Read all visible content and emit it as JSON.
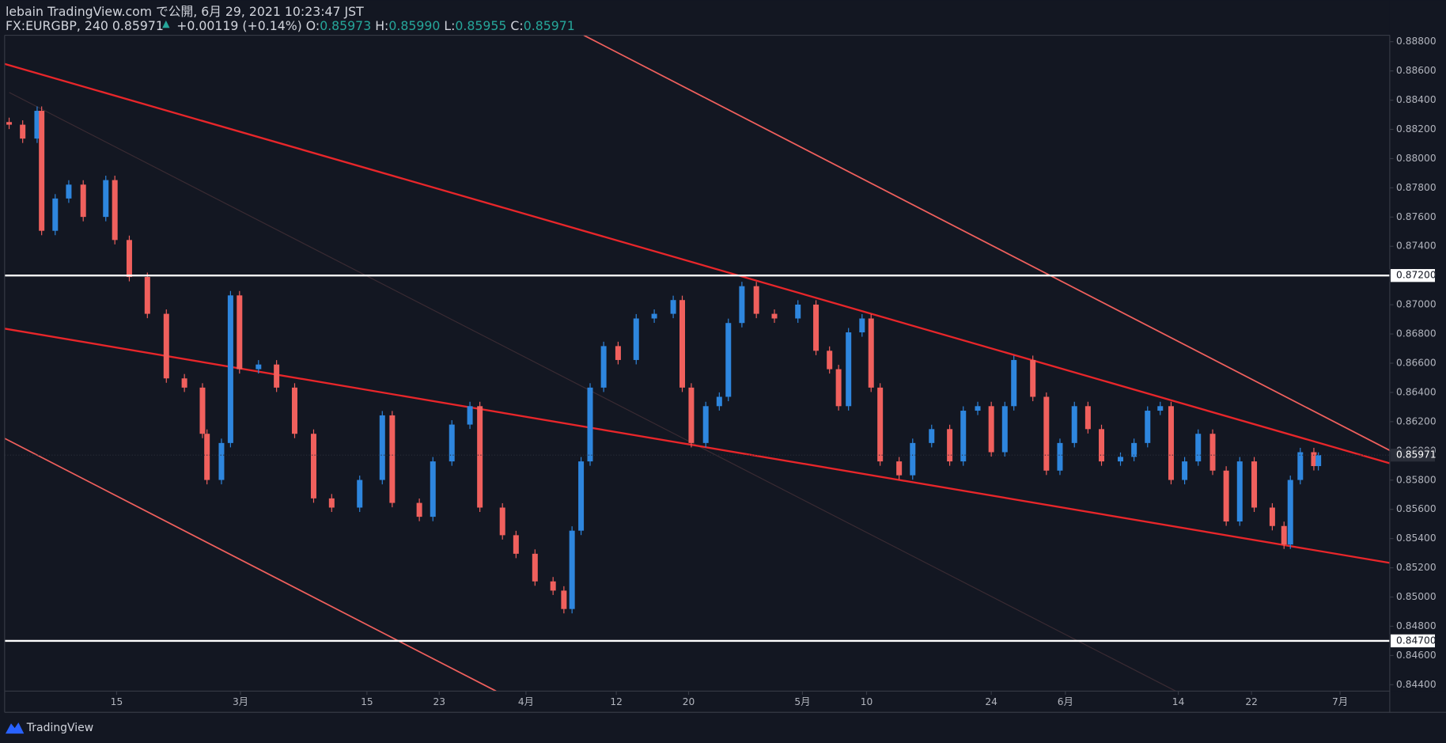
{
  "header": {
    "publisher_line": "lebain TradingView.com で公開, 6月 29, 2021 10:23:47 JST",
    "symbol": "FX:EURGBP, 240",
    "last": "0.85971",
    "change": "+0.00119 (+0.14%)",
    "open_label": "O:",
    "open": "0.85973",
    "high_label": "H:",
    "high": "0.85990",
    "low_label": "L:",
    "low": "0.85955",
    "close_label": "C:",
    "close": "0.85971"
  },
  "footer": {
    "brand": "TradingView"
  },
  "chart_data": {
    "type": "candlestick",
    "up_color": "#2e86de",
    "down_color": "#f0605d",
    "grid": false,
    "x": [
      0.5,
      2.0,
      3.6,
      4.1,
      5.6,
      7.1,
      8.7,
      11.2,
      12.2,
      13.8,
      15.8,
      17.9,
      19.9,
      21.9,
      22.4,
      24.0,
      25.0,
      26.0,
      28.1,
      30.1,
      32.1,
      34.2,
      36.2,
      39.3,
      41.8,
      42.9,
      45.9,
      47.4,
      49.5,
      51.5,
      52.6,
      55.1,
      56.6,
      58.7,
      60.7,
      61.9,
      62.8,
      63.8,
      64.8,
      66.3,
      67.9,
      69.9,
      71.9,
      74.0,
      75.0,
      76.0,
      77.6,
      79.1,
      80.1,
      81.6,
      83.2,
      85.2,
      87.8,
      89.8,
      91.3,
      92.3,
      93.4,
      94.9,
      95.9,
      96.9,
      99.0,
      100.5,
      102.6,
      104.6,
      106.1,
      107.7,
      109.2,
      110.7,
      111.7,
      113.8,
      115.3,
      116.8,
      118.4,
      119.9,
      121.4,
      123.5,
      125.0,
      126.5,
      127.9,
      129.1,
      130.6,
      132.1,
      133.7,
      135.2,
      136.7,
      138.3,
      140.3,
      141.6,
      142.3,
      143.4,
      144.9,
      145.4
    ],
    "open": [
      0.8825,
      0.88232,
      0.88137,
      0.88327,
      0.87506,
      0.87727,
      0.87822,
      0.87601,
      0.87853,
      0.87443,
      0.8719,
      0.86938,
      0.86496,
      0.86433,
      0.86117,
      0.85801,
      0.86054,
      0.87064,
      0.86559,
      0.86591,
      0.86433,
      0.86117,
      0.85675,
      0.85612,
      0.85801,
      0.86243,
      0.85644,
      0.85549,
      0.85928,
      0.8618,
      0.86306,
      0.85612,
      0.85423,
      0.85296,
      0.85107,
      0.85044,
      0.84918,
      0.85454,
      0.85928,
      0.86433,
      0.86717,
      0.86622,
      0.86906,
      0.86938,
      0.87032,
      0.86433,
      0.86054,
      0.86306,
      0.8637,
      0.86875,
      0.87127,
      0.86938,
      0.86906,
      0.87001,
      0.86685,
      0.86559,
      0.86306,
      0.86811,
      0.86906,
      0.86433,
      0.85928,
      0.85833,
      0.86054,
      0.86149,
      0.85928,
      0.86275,
      0.86306,
      0.85991,
      0.86306,
      0.86622,
      0.8637,
      0.85865,
      0.86054,
      0.86306,
      0.86149,
      0.85928,
      0.85959,
      0.86054,
      0.86275,
      0.86306,
      0.85801,
      0.85928,
      0.86117,
      0.85865,
      0.85517,
      0.85928,
      0.85612,
      0.85486,
      0.85359,
      0.85801,
      0.85991,
      0.85896
    ],
    "high": [
      0.8828,
      0.88262,
      0.88357,
      0.88357,
      0.87757,
      0.87852,
      0.87852,
      0.87883,
      0.87883,
      0.87473,
      0.8722,
      0.86968,
      0.86526,
      0.86463,
      0.86147,
      0.86084,
      0.87094,
      0.87094,
      0.86621,
      0.86621,
      0.86463,
      0.86147,
      0.85705,
      0.85831,
      0.86273,
      0.86273,
      0.85674,
      0.85958,
      0.8621,
      0.86336,
      0.86336,
      0.85642,
      0.85453,
      0.85326,
      0.85137,
      0.85074,
      0.85484,
      0.85958,
      0.86463,
      0.86747,
      0.86747,
      0.86936,
      0.86968,
      0.87062,
      0.87062,
      0.86463,
      0.86336,
      0.864,
      0.86905,
      0.87157,
      0.87157,
      0.86968,
      0.87031,
      0.87031,
      0.86715,
      0.86589,
      0.86841,
      0.86936,
      0.86936,
      0.86463,
      0.85958,
      0.86084,
      0.86179,
      0.86179,
      0.86305,
      0.86336,
      0.86336,
      0.86336,
      0.86652,
      0.86652,
      0.864,
      0.86084,
      0.86336,
      0.86336,
      0.86179,
      0.85989,
      0.86084,
      0.86305,
      0.86336,
      0.86336,
      0.85958,
      0.86147,
      0.86147,
      0.85895,
      0.85958,
      0.85958,
      0.85642,
      0.85516,
      0.85831,
      0.86021,
      0.86021,
      0.8599
    ],
    "low": [
      0.88202,
      0.88107,
      0.88107,
      0.87476,
      0.87476,
      0.87697,
      0.87571,
      0.87571,
      0.87413,
      0.8716,
      0.86908,
      0.86466,
      0.86403,
      0.86087,
      0.85771,
      0.85771,
      0.86024,
      0.86529,
      0.86529,
      0.86403,
      0.86087,
      0.85645,
      0.85582,
      0.85582,
      0.85771,
      0.85614,
      0.85519,
      0.85519,
      0.85898,
      0.8615,
      0.85582,
      0.85393,
      0.85266,
      0.85077,
      0.85014,
      0.84888,
      0.84888,
      0.85424,
      0.85898,
      0.86403,
      0.86592,
      0.86592,
      0.86876,
      0.86908,
      0.86403,
      0.86024,
      0.86024,
      0.86276,
      0.8634,
      0.86845,
      0.86908,
      0.86876,
      0.86876,
      0.86655,
      0.86529,
      0.86276,
      0.86276,
      0.86781,
      0.86403,
      0.85898,
      0.85803,
      0.85803,
      0.86024,
      0.85898,
      0.85898,
      0.86245,
      0.85961,
      0.85961,
      0.86276,
      0.8634,
      0.85835,
      0.85835,
      0.86024,
      0.86119,
      0.85898,
      0.85898,
      0.85929,
      0.86024,
      0.86245,
      0.85771,
      0.85771,
      0.85898,
      0.85835,
      0.85487,
      0.85487,
      0.85582,
      0.85456,
      0.85329,
      0.85329,
      0.85771,
      0.85866,
      0.85866
    ],
    "close": [
      0.88232,
      0.88137,
      0.88327,
      0.87506,
      0.87727,
      0.87822,
      0.87601,
      0.87853,
      0.87443,
      0.8719,
      0.86938,
      0.86496,
      0.86433,
      0.86117,
      0.85801,
      0.86054,
      0.87064,
      0.86559,
      0.86591,
      0.86433,
      0.86117,
      0.85675,
      0.85612,
      0.85801,
      0.86243,
      0.85644,
      0.85549,
      0.85928,
      0.8618,
      0.86306,
      0.85612,
      0.85423,
      0.85296,
      0.85107,
      0.85044,
      0.84918,
      0.85454,
      0.85928,
      0.86433,
      0.86717,
      0.86622,
      0.86906,
      0.86938,
      0.87032,
      0.86433,
      0.86054,
      0.86306,
      0.8637,
      0.86875,
      0.87127,
      0.86938,
      0.86906,
      0.87001,
      0.86685,
      0.86559,
      0.86306,
      0.86811,
      0.86906,
      0.86433,
      0.85928,
      0.85833,
      0.86054,
      0.86149,
      0.85928,
      0.86275,
      0.86306,
      0.85991,
      0.86306,
      0.86622,
      0.8637,
      0.85865,
      0.86054,
      0.86306,
      0.86149,
      0.85928,
      0.85959,
      0.86054,
      0.86275,
      0.86306,
      0.85801,
      0.85928,
      0.86117,
      0.85865,
      0.85517,
      0.85928,
      0.85612,
      0.85486,
      0.85359,
      0.85801,
      0.85991,
      0.85896,
      0.85971
    ],
    "xlim": [
      0,
      153.3
    ],
    "xticks": [
      {
        "value": 12.4,
        "label": "15"
      },
      {
        "value": 26.1,
        "label": "3月"
      },
      {
        "value": 40.1,
        "label": "15"
      },
      {
        "value": 48.1,
        "label": "23"
      },
      {
        "value": 57.7,
        "label": "4月"
      },
      {
        "value": 67.7,
        "label": "12"
      },
      {
        "value": 75.7,
        "label": "20"
      },
      {
        "value": 88.3,
        "label": "5月"
      },
      {
        "value": 95.4,
        "label": "10"
      },
      {
        "value": 109.2,
        "label": "24"
      },
      {
        "value": 117.4,
        "label": "6月"
      },
      {
        "value": 129.9,
        "label": "14"
      },
      {
        "value": 138.0,
        "label": "22"
      },
      {
        "value": 147.8,
        "label": "7月"
      }
    ],
    "ylim": [
      0.84356,
      0.88844
    ],
    "yticks": [
      {
        "value": 0.844,
        "label": "0.84400"
      },
      {
        "value": 0.846,
        "label": "0.84600"
      },
      {
        "value": 0.848,
        "label": "0.84800"
      },
      {
        "value": 0.85,
        "label": "0.85000"
      },
      {
        "value": 0.852,
        "label": "0.85200"
      },
      {
        "value": 0.854,
        "label": "0.85400"
      },
      {
        "value": 0.856,
        "label": "0.85600"
      },
      {
        "value": 0.858,
        "label": "0.85800"
      },
      {
        "value": 0.86,
        "label": "0.86000"
      },
      {
        "value": 0.862,
        "label": "0.86200"
      },
      {
        "value": 0.864,
        "label": "0.86400"
      },
      {
        "value": 0.866,
        "label": "0.86600"
      },
      {
        "value": 0.868,
        "label": "0.86800"
      },
      {
        "value": 0.87,
        "label": "0.87000"
      },
      {
        "value": 0.872,
        "label": "0.87200"
      },
      {
        "value": 0.874,
        "label": "0.87400"
      },
      {
        "value": 0.876,
        "label": "0.87600"
      },
      {
        "value": 0.878,
        "label": "0.87800"
      },
      {
        "value": 0.88,
        "label": "0.88000"
      },
      {
        "value": 0.882,
        "label": "0.88200"
      },
      {
        "value": 0.884,
        "label": "0.88400"
      },
      {
        "value": 0.886,
        "label": "0.88600"
      },
      {
        "value": 0.888,
        "label": "0.88800"
      }
    ],
    "hlines": [
      {
        "value": 0.872,
        "label": "0.87200"
      },
      {
        "value": 0.847,
        "label": "0.84700"
      }
    ],
    "last_price": {
      "value": 0.85971,
      "label": "0.85971"
    }
  }
}
